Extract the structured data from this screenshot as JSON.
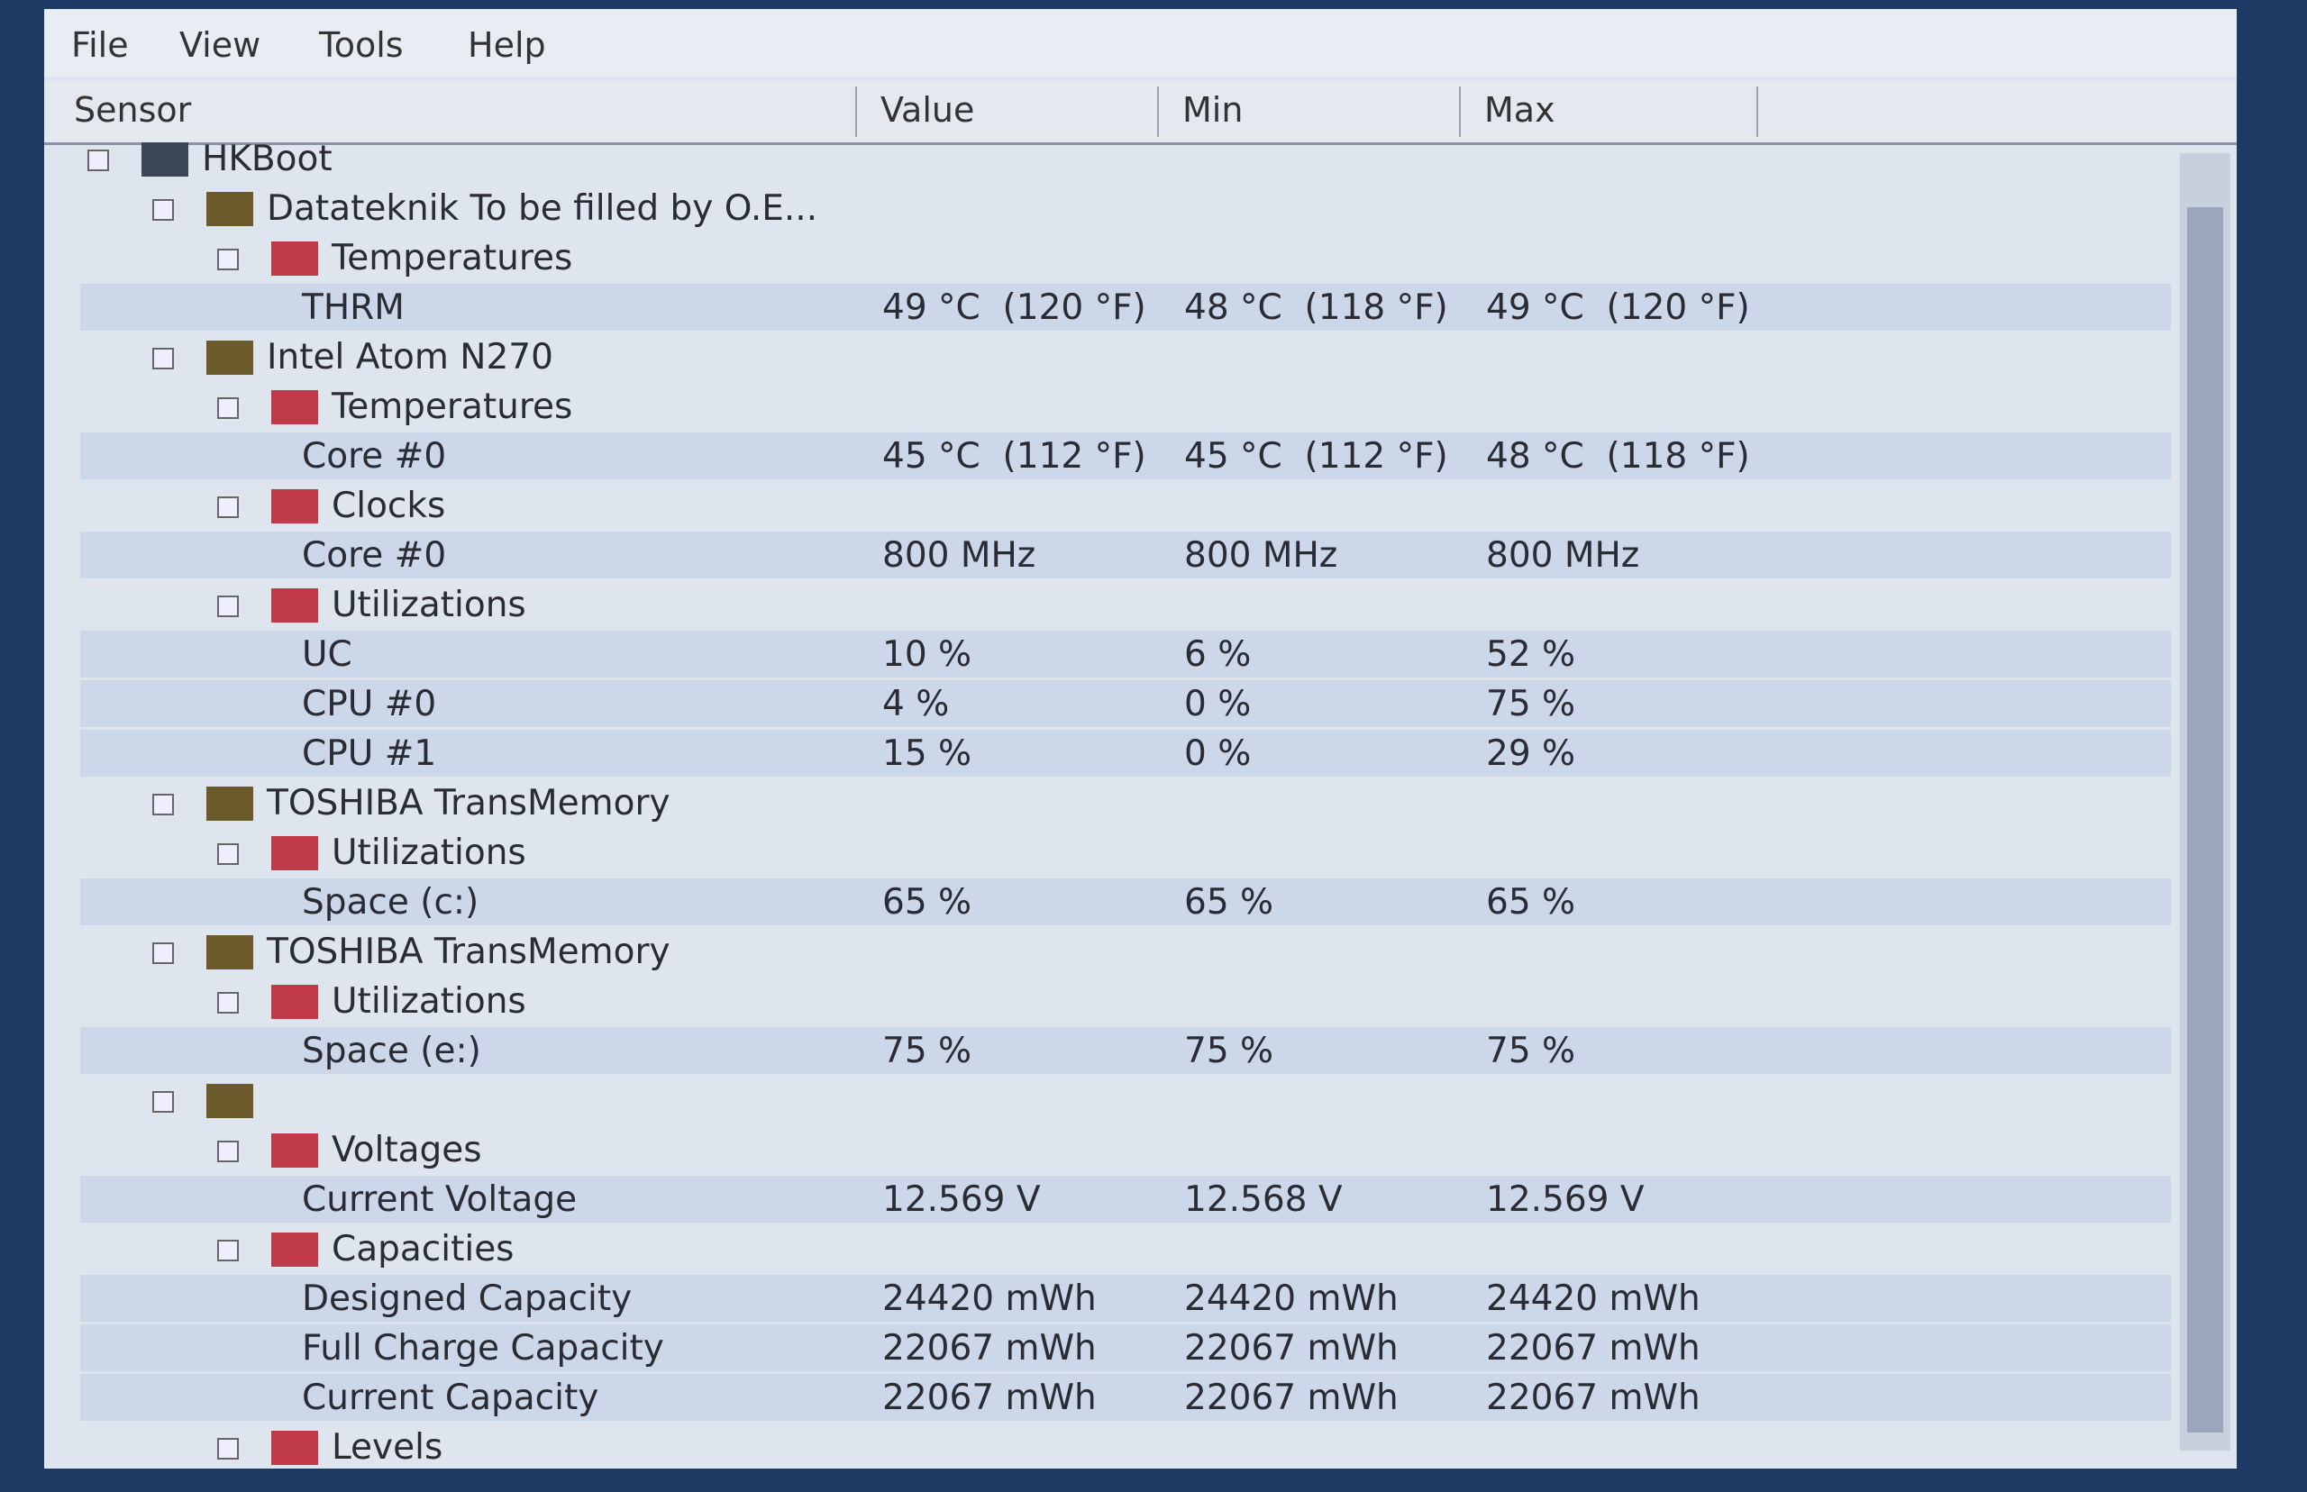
{
  "menu": [
    "File",
    "View",
    "Tools",
    "Help"
  ],
  "columns": [
    "Sensor",
    "Value",
    "Min",
    "Max"
  ],
  "rows": [
    {
      "level": 0,
      "label": "HKBoot"
    },
    {
      "level": 1,
      "label": "Datateknik To be filled by O.E..."
    },
    {
      "level": 2,
      "label": "Temperatures"
    },
    {
      "level": 3,
      "label": "THRM",
      "value": "49 °C  (120 °F)",
      "min": "48 °C  (118 °F)",
      "max": "49 °C  (120 °F)"
    },
    {
      "level": 1,
      "label": "Intel Atom N270"
    },
    {
      "level": 2,
      "label": "Temperatures"
    },
    {
      "level": 3,
      "label": "Core #0",
      "value": "45 °C  (112 °F)",
      "min": "45 °C  (112 °F)",
      "max": "48 °C  (118 °F)"
    },
    {
      "level": 2,
      "label": "Clocks"
    },
    {
      "level": 3,
      "label": "Core #0",
      "value": "800 MHz",
      "min": "800 MHz",
      "max": "800 MHz"
    },
    {
      "level": 2,
      "label": "Utilizations"
    },
    {
      "level": 3,
      "label": "UC",
      "value": "10 %",
      "min": "6 %",
      "max": "52 %"
    },
    {
      "level": 3,
      "label": "CPU #0",
      "value": "4 %",
      "min": "0 %",
      "max": "75 %"
    },
    {
      "level": 3,
      "label": "CPU #1",
      "value": "15 %",
      "min": "0 %",
      "max": "29 %"
    },
    {
      "level": 1,
      "label": "TOSHIBA TransMemory"
    },
    {
      "level": 2,
      "label": "Utilizations"
    },
    {
      "level": 3,
      "label": "Space (c:)",
      "value": "65 %",
      "min": "65 %",
      "max": "65 %"
    },
    {
      "level": 1,
      "label": "TOSHIBA TransMemory"
    },
    {
      "level": 2,
      "label": "Utilizations"
    },
    {
      "level": 3,
      "label": "Space (e:)",
      "value": "75 %",
      "min": "75 %",
      "max": "75 %"
    },
    {
      "level": 1
    },
    {
      "level": 2,
      "label": "Voltages"
    },
    {
      "level": 3,
      "label": "Current Voltage",
      "value": "12.569 V",
      "min": "12.568 V",
      "max": "12.569 V"
    },
    {
      "level": 2,
      "label": "Capacities"
    },
    {
      "level": 3,
      "label": "Designed Capacity",
      "value": "24420 mWh",
      "min": "24420 mWh",
      "max": "24420 mWh"
    },
    {
      "level": 3,
      "label": "Full Charge Capacity",
      "value": "22067 mWh",
      "min": "22067 mWh",
      "max": "22067 mWh"
    },
    {
      "level": 3,
      "label": "Current Capacity",
      "value": "22067 mWh",
      "min": "22067 mWh",
      "max": "22067 mWh"
    },
    {
      "level": 2,
      "label": "Levels"
    }
  ]
}
